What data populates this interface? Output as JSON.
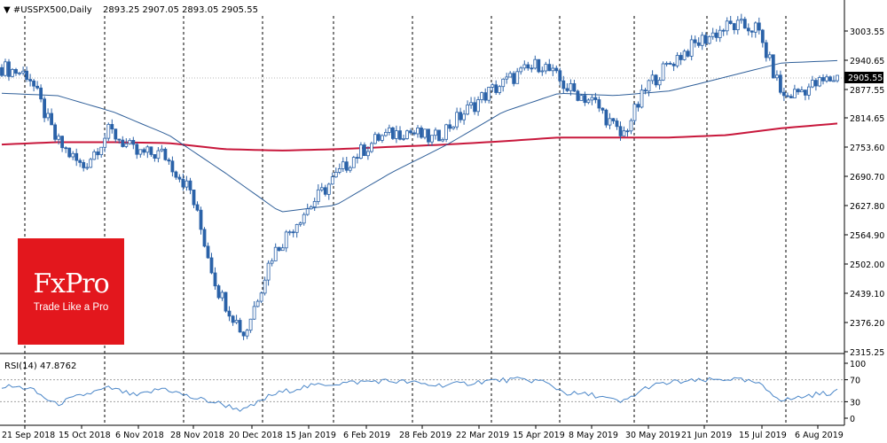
{
  "header": {
    "symbol_label": "▼ #USSPX500,Daily",
    "ohlc_text": "2893.25 2907.05 2893.05 2905.55"
  },
  "logo": {
    "name": "FxPro",
    "tagline": "Trade Like a Pro",
    "bg_color": "#e3171d"
  },
  "rsi_panel": {
    "label": "RSI(14) 47.8762"
  },
  "price_axis": {
    "ticks": [
      "3003.55",
      "2940.65",
      "2877.55",
      "2814.65",
      "2753.60",
      "2690.70",
      "2627.80",
      "2564.90",
      "2502.00",
      "2439.10",
      "2376.20",
      "2315.25"
    ],
    "current_price_tag": "2905.55"
  },
  "rsi_axis": {
    "ticks": [
      "100",
      "70",
      "30",
      "0"
    ]
  },
  "time_axis": {
    "labels": [
      "21 Sep 2018",
      "15 Oct 2018",
      "6 Nov 2018",
      "28 Nov 2018",
      "20 Dec 2018",
      "15 Jan 2019",
      "6 Feb 2019",
      "28 Feb 2019",
      "22 Mar 2019",
      "15 Apr 2019",
      "8 May 2019",
      "30 May 2019",
      "21 Jun 2019",
      "15 Jul 2019",
      "6 Aug 2019"
    ]
  },
  "colors": {
    "bull_candle": "#ffffff",
    "bear_candle": "#2b62a8",
    "candle_outline": "#2b62a8",
    "ma50_line": "#2f5f99",
    "ma200_line": "#c8183c",
    "rsi_line": "#4a86c8",
    "grid_dashed": "#000000",
    "axis_line": "#000000"
  },
  "chart_data": [
    {
      "type": "candlestick",
      "title": "#USSPX500,Daily",
      "ylim": [
        2315.25,
        3003.55
      ],
      "series": [
        {
          "name": "OHLC",
          "x": [
            "21 Sep 2018",
            "1 Oct 2018",
            "15 Oct 2018",
            "25 Oct 2018",
            "6 Nov 2018",
            "16 Nov 2018",
            "28 Nov 2018",
            "7 Dec 2018",
            "20 Dec 2018",
            "24 Dec 2018",
            "2 Jan 2019",
            "15 Jan 2019",
            "25 Jan 2019",
            "6 Feb 2019",
            "18 Feb 2019",
            "28 Feb 2019",
            "11 Mar 2019",
            "22 Mar 2019",
            "2 Apr 2019",
            "15 Apr 2019",
            "25 Apr 2019",
            "8 May 2019",
            "20 May 2019",
            "30 May 2019",
            "10 Jun 2019",
            "21 Jun 2019",
            "3 Jul 2019",
            "15 Jul 2019",
            "25 Jul 2019",
            "6 Aug 2019",
            "16 Aug 2019",
            "21 Aug 2019"
          ],
          "y": [
            2925,
            2910,
            2770,
            2710,
            2790,
            2740,
            2740,
            2660,
            2450,
            2350,
            2520,
            2600,
            2665,
            2730,
            2775,
            2790,
            2770,
            2820,
            2870,
            2905,
            2935,
            2880,
            2850,
            2775,
            2890,
            2945,
            2985,
            3015,
            3010,
            2860,
            2885,
            2905
          ]
        },
        {
          "name": "MA50",
          "x": [
            "21 Sep 2018",
            "15 Oct 2018",
            "6 Nov 2018",
            "28 Nov 2018",
            "20 Dec 2018",
            "15 Jan 2019",
            "6 Feb 2019",
            "28 Feb 2019",
            "22 Mar 2019",
            "15 Apr 2019",
            "8 May 2019",
            "30 May 2019",
            "21 Jun 2019",
            "15 Jul 2019",
            "6 Aug 2019",
            "21 Aug 2019"
          ],
          "y": [
            2870,
            2865,
            2830,
            2780,
            2700,
            2615,
            2630,
            2700,
            2760,
            2830,
            2870,
            2865,
            2875,
            2905,
            2935,
            2940
          ]
        },
        {
          "name": "MA200",
          "x": [
            "21 Sep 2018",
            "15 Oct 2018",
            "6 Nov 2018",
            "28 Nov 2018",
            "20 Dec 2018",
            "15 Jan 2019",
            "6 Feb 2019",
            "28 Feb 2019",
            "22 Mar 2019",
            "15 Apr 2019",
            "8 May 2019",
            "30 May 2019",
            "21 Jun 2019",
            "15 Jul 2019",
            "6 Aug 2019",
            "21 Aug 2019"
          ],
          "y": [
            2760,
            2765,
            2765,
            2763,
            2750,
            2747,
            2750,
            2755,
            2760,
            2767,
            2775,
            2775,
            2775,
            2780,
            2795,
            2805
          ]
        }
      ]
    },
    {
      "type": "line",
      "title": "RSI(14) 47.8762",
      "ylim": [
        0,
        100
      ],
      "series": [
        {
          "name": "RSI(14)",
          "x": [
            "21 Sep 2018",
            "1 Oct 2018",
            "15 Oct 2018",
            "25 Oct 2018",
            "6 Nov 2018",
            "16 Nov 2018",
            "28 Nov 2018",
            "7 Dec 2018",
            "20 Dec 2018",
            "24 Dec 2018",
            "2 Jan 2019",
            "15 Jan 2019",
            "25 Jan 2019",
            "6 Feb 2019",
            "18 Feb 2019",
            "28 Feb 2019",
            "11 Mar 2019",
            "22 Mar 2019",
            "2 Apr 2019",
            "15 Apr 2019",
            "25 Apr 2019",
            "8 May 2019",
            "20 May 2019",
            "30 May 2019",
            "10 Jun 2019",
            "21 Jun 2019",
            "3 Jul 2019",
            "15 Jul 2019",
            "25 Jul 2019",
            "6 Aug 2019",
            "16 Aug 2019",
            "21 Aug 2019"
          ],
          "y": [
            58,
            55,
            25,
            42,
            55,
            40,
            55,
            38,
            28,
            14,
            42,
            55,
            62,
            65,
            68,
            66,
            60,
            62,
            68,
            70,
            68,
            45,
            42,
            28,
            58,
            66,
            68,
            72,
            64,
            32,
            42,
            48
          ]
        }
      ]
    }
  ]
}
